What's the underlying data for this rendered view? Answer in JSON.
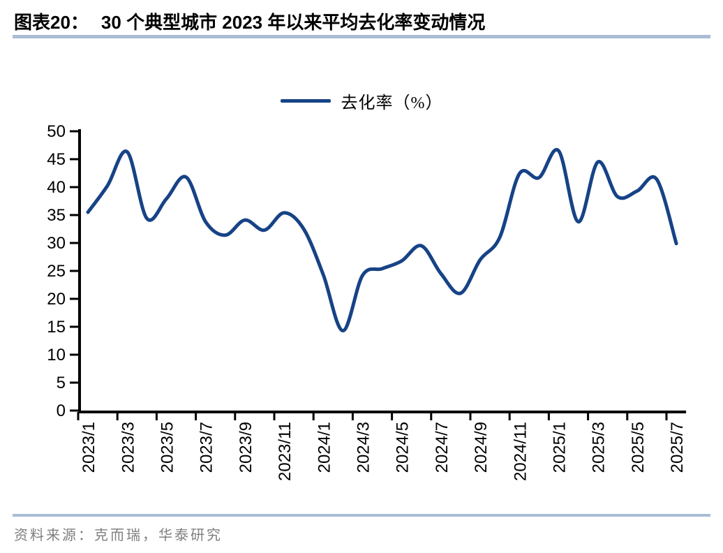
{
  "title": {
    "exhibit_label": "图表20：",
    "text": "30 个典型城市 2023 年以来平均去化率变动情况"
  },
  "legend": {
    "series_label": "去化率（%）"
  },
  "source_line": "资料来源：克而瑞，华泰研究",
  "colors": {
    "line": "#174386",
    "rule": "#A9BCD4",
    "axis": "#000000",
    "title_text": "#000000",
    "source_text": "#7F7F7F"
  },
  "chart_data": {
    "type": "line",
    "smooth": true,
    "title": "30 个典型城市 2023 年以来平均去化率变动情况",
    "xlabel": "",
    "ylabel": "",
    "ylim": [
      0,
      50
    ],
    "y_ticks": [
      0,
      5,
      10,
      15,
      20,
      25,
      30,
      35,
      40,
      45,
      50
    ],
    "grid": false,
    "legend_position": "top-center",
    "x": [
      "2023/1",
      "2023/2",
      "2023/3",
      "2023/4",
      "2023/5",
      "2023/6",
      "2023/7",
      "2023/8",
      "2023/9",
      "2023/10",
      "2023/11",
      "2023/12",
      "2024/1",
      "2024/2",
      "2024/3",
      "2024/4",
      "2024/5",
      "2024/6",
      "2024/7",
      "2024/8",
      "2024/9",
      "2024/10",
      "2024/11",
      "2024/12",
      "2025/1",
      "2025/2",
      "2025/3",
      "2025/4",
      "2025/5",
      "2025/6",
      "2025/7"
    ],
    "x_tick_labels": [
      "2023/1",
      "2023/3",
      "2023/5",
      "2023/7",
      "2023/9",
      "2023/11",
      "2024/1",
      "2024/3",
      "2024/5",
      "2024/7",
      "2024/9",
      "2024/11",
      "2025/1",
      "2025/3",
      "2025/5",
      "2025/7"
    ],
    "series": [
      {
        "name": "去化率（%）",
        "values": [
          35.5,
          40.3,
          46.3,
          34.4,
          37.9,
          41.8,
          33.8,
          31.4,
          34.1,
          32.3,
          35.4,
          32.5,
          24.3,
          14.3,
          24.2,
          25.4,
          26.8,
          29.5,
          24.5,
          21.0,
          27.0,
          31.0,
          42.4,
          41.7,
          46.5,
          33.8,
          44.5,
          38.3,
          39.3,
          41.4,
          29.9
        ]
      }
    ]
  }
}
